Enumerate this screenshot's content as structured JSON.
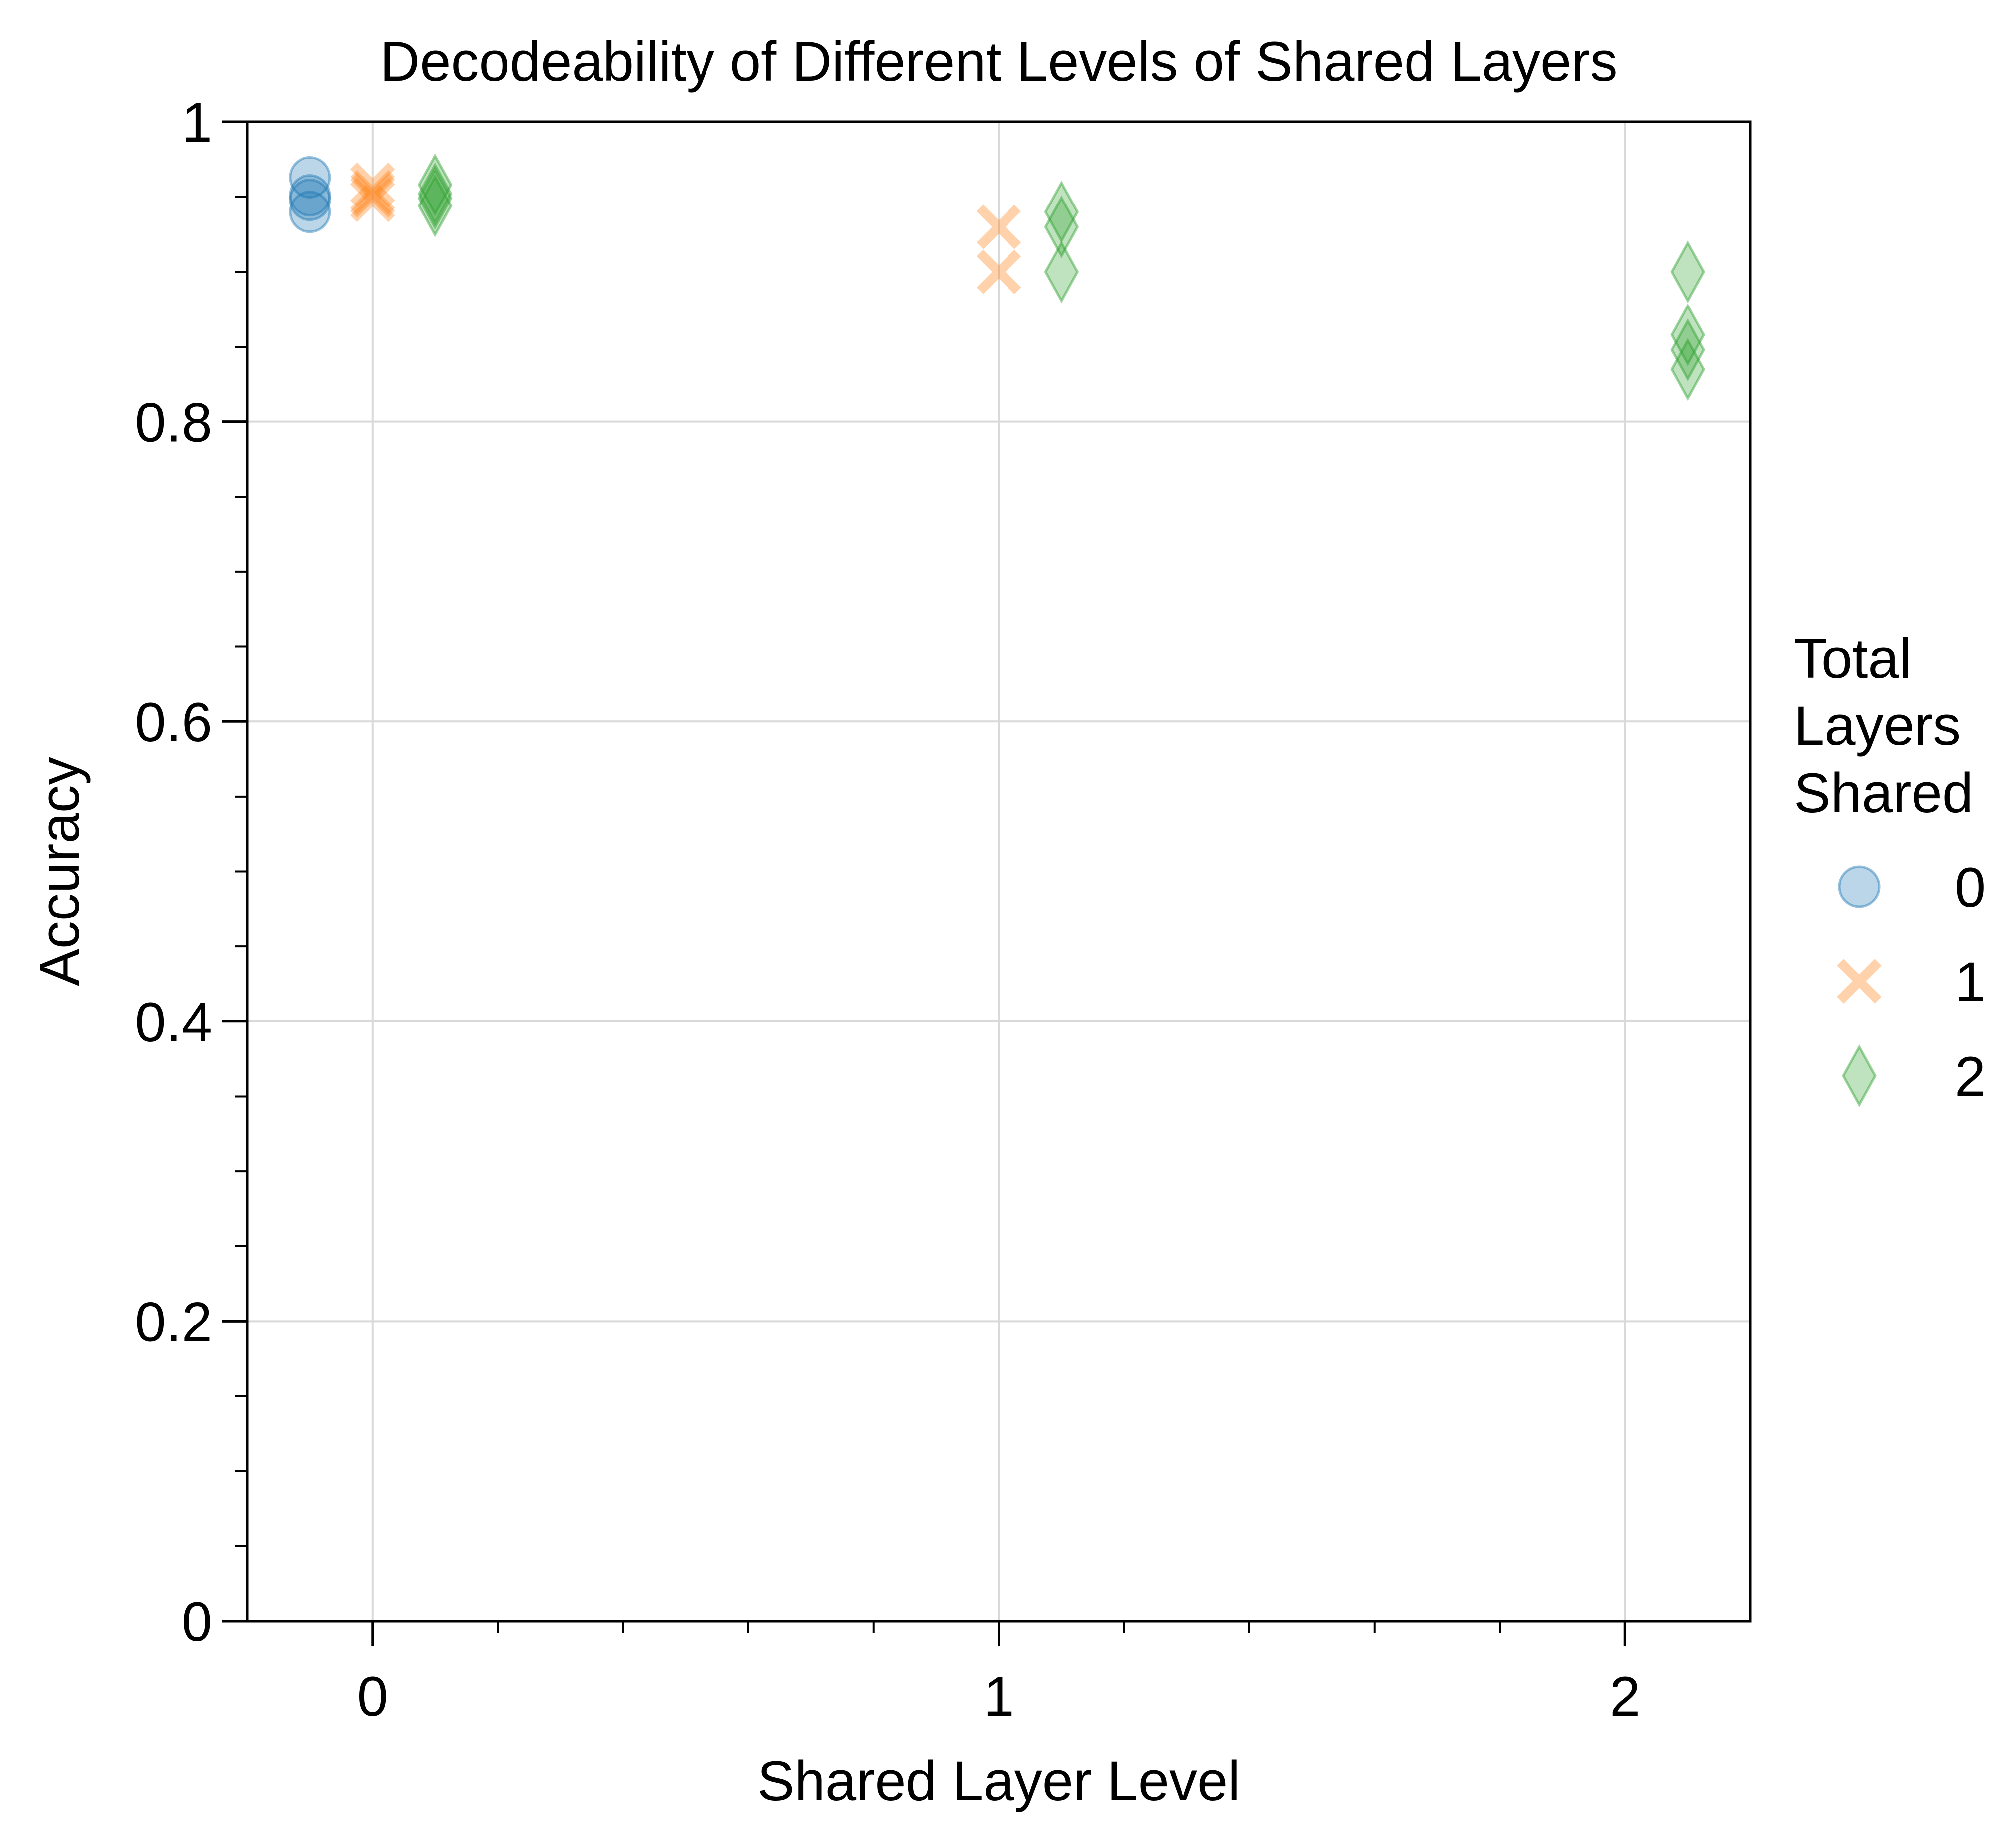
{
  "chart_data": {
    "type": "scatter",
    "title": "Decodeability of Different Levels of Shared Layers",
    "xlabel": "Shared Layer Level",
    "ylabel": "Accuracy",
    "xlim": [
      -0.2,
      2.2
    ],
    "ylim": [
      0,
      1
    ],
    "x_ticks": [
      0,
      1,
      2
    ],
    "x_tick_labels": [
      "0",
      "1",
      "2"
    ],
    "y_ticks": [
      0,
      0.2,
      0.4,
      0.6,
      0.8,
      1
    ],
    "y_tick_labels": [
      "0",
      "0.2",
      "0.4",
      "0.6",
      "0.8",
      "1"
    ],
    "grid": true,
    "legend": {
      "title": [
        "Total",
        "Layers",
        "Shared"
      ],
      "placement": "right-outside"
    },
    "series": [
      {
        "name": "0",
        "marker": "circle",
        "color": "#1f77b4",
        "x": [
          -0.1,
          -0.1,
          -0.1,
          -0.1
        ],
        "y": [
          0.963,
          0.951,
          0.948,
          0.94
        ]
      },
      {
        "name": "1",
        "marker": "x",
        "color": "#ff7f0e",
        "x": [
          0,
          0,
          0,
          0,
          1,
          1
        ],
        "y": [
          0.958,
          0.953,
          0.951,
          0.948,
          0.93,
          0.9
        ]
      },
      {
        "name": "2",
        "marker": "diamond",
        "color": "#2ca02c",
        "x": [
          0.1,
          0.1,
          0.1,
          0.1,
          1.1,
          1.1,
          1.1,
          2.1,
          2.1,
          2.1,
          2.1
        ],
        "y": [
          0.958,
          0.952,
          0.949,
          0.944,
          0.94,
          0.93,
          0.9,
          0.9,
          0.858,
          0.848,
          0.835
        ]
      }
    ]
  }
}
